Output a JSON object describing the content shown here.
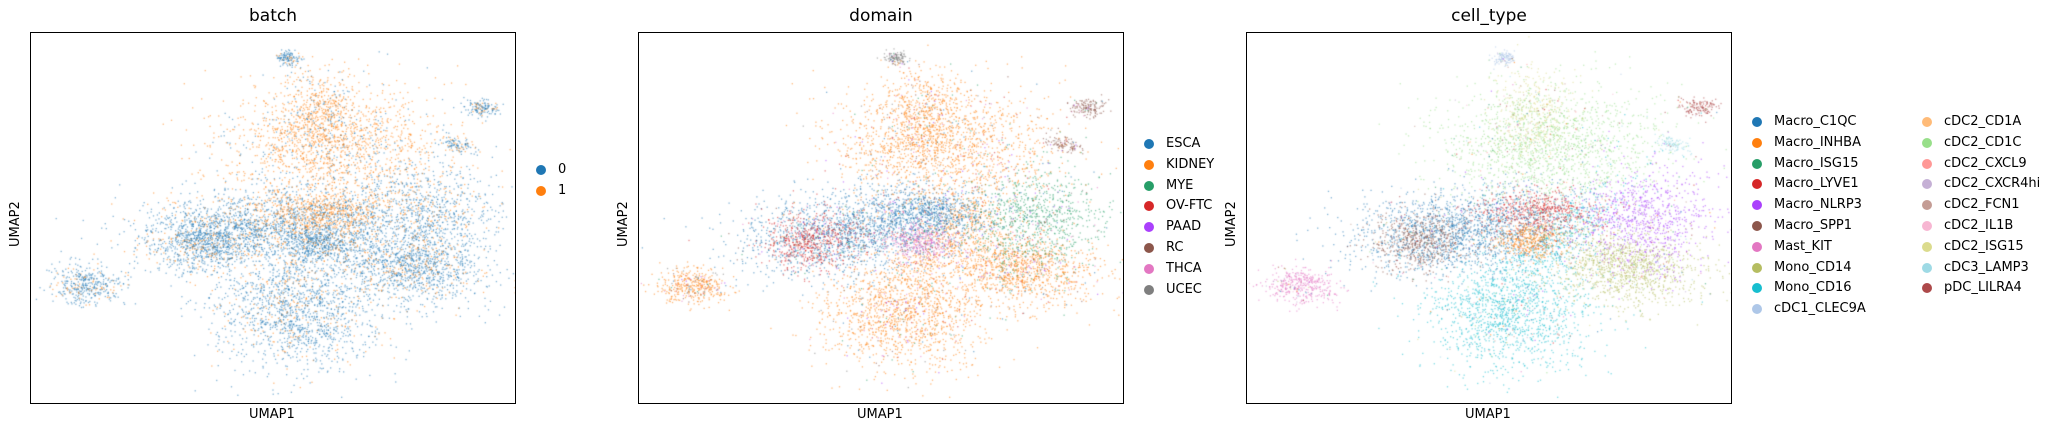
{
  "panels": [
    {
      "title": "batch",
      "xlabel": "UMAP1",
      "ylabel": "UMAP2",
      "legend": [
        {
          "label": "0",
          "color": "#1f77b4"
        },
        {
          "label": "1",
          "color": "#ff7f0e"
        }
      ]
    },
    {
      "title": "domain",
      "xlabel": "UMAP1",
      "ylabel": "UMAP2",
      "legend": [
        {
          "label": "ESCA",
          "color": "#1f77b4"
        },
        {
          "label": "KIDNEY",
          "color": "#ff7f0e"
        },
        {
          "label": "MYE",
          "color": "#279e68"
        },
        {
          "label": "OV-FTC",
          "color": "#d62728"
        },
        {
          "label": "PAAD",
          "color": "#aa40fc"
        },
        {
          "label": "RC",
          "color": "#8c564b"
        },
        {
          "label": "THCA",
          "color": "#e377c2"
        },
        {
          "label": "UCEC",
          "color": "#7f7f7f"
        }
      ]
    },
    {
      "title": "cell_type",
      "xlabel": "UMAP1",
      "ylabel": "UMAP2",
      "legend": [
        {
          "label": "Macro_C1QC",
          "color": "#1f77b4"
        },
        {
          "label": "Macro_INHBA",
          "color": "#ff7f0e"
        },
        {
          "label": "Macro_ISG15",
          "color": "#279e68"
        },
        {
          "label": "Macro_LYVE1",
          "color": "#d62728"
        },
        {
          "label": "Macro_NLRP3",
          "color": "#aa40fc"
        },
        {
          "label": "Macro_SPP1",
          "color": "#8c564b"
        },
        {
          "label": "Mast_KIT",
          "color": "#e377c2"
        },
        {
          "label": "Mono_CD14",
          "color": "#b5bd61"
        },
        {
          "label": "Mono_CD16",
          "color": "#17becf"
        },
        {
          "label": "cDC1_CLEC9A",
          "color": "#aec7e8"
        },
        {
          "label": "cDC2_CD1A",
          "color": "#ffbb78"
        },
        {
          "label": "cDC2_CD1C",
          "color": "#98df8a"
        },
        {
          "label": "cDC2_CXCL9",
          "color": "#ff9896"
        },
        {
          "label": "cDC2_CXCR4hi",
          "color": "#c5b0d5"
        },
        {
          "label": "cDC2_FCN1",
          "color": "#c49c94"
        },
        {
          "label": "cDC2_IL1B",
          "color": "#f7b6d2"
        },
        {
          "label": "cDC2_ISG15",
          "color": "#dbdb8d"
        },
        {
          "label": "cDC3_LAMP3",
          "color": "#9edae5"
        },
        {
          "label": "pDC_LILRA4",
          "color": "#ad494a"
        }
      ]
    }
  ],
  "chart_data": [
    {
      "type": "scatter",
      "title": "batch",
      "xlabel": "UMAP1",
      "ylabel": "UMAP2",
      "grid": false,
      "legend_placement": "right",
      "series": [
        {
          "name": "0"
        },
        {
          "name": "1"
        }
      ]
    },
    {
      "type": "scatter",
      "title": "domain",
      "xlabel": "UMAP1",
      "ylabel": "UMAP2",
      "grid": false,
      "legend_placement": "right",
      "series": [
        {
          "name": "ESCA"
        },
        {
          "name": "KIDNEY"
        },
        {
          "name": "MYE"
        },
        {
          "name": "OV-FTC"
        },
        {
          "name": "PAAD"
        },
        {
          "name": "RC"
        },
        {
          "name": "THCA"
        },
        {
          "name": "UCEC"
        }
      ]
    },
    {
      "type": "scatter",
      "title": "cell_type",
      "xlabel": "UMAP1",
      "ylabel": "UMAP2",
      "grid": false,
      "legend_placement": "right",
      "series": [
        {
          "name": "Macro_C1QC"
        },
        {
          "name": "Macro_INHBA"
        },
        {
          "name": "Macro_ISG15"
        },
        {
          "name": "Macro_LYVE1"
        },
        {
          "name": "Macro_NLRP3"
        },
        {
          "name": "Macro_SPP1"
        },
        {
          "name": "Mast_KIT"
        },
        {
          "name": "Mono_CD14"
        },
        {
          "name": "Mono_CD16"
        },
        {
          "name": "cDC1_CLEC9A"
        },
        {
          "name": "cDC2_CD1A"
        },
        {
          "name": "cDC2_CD1C"
        },
        {
          "name": "cDC2_CXCL9"
        },
        {
          "name": "cDC2_CXCR4hi"
        },
        {
          "name": "cDC2_FCN1"
        },
        {
          "name": "cDC2_IL1B"
        },
        {
          "name": "cDC2_ISG15"
        },
        {
          "name": "cDC3_LAMP3"
        },
        {
          "name": "pDC_LILRA4"
        }
      ]
    }
  ]
}
